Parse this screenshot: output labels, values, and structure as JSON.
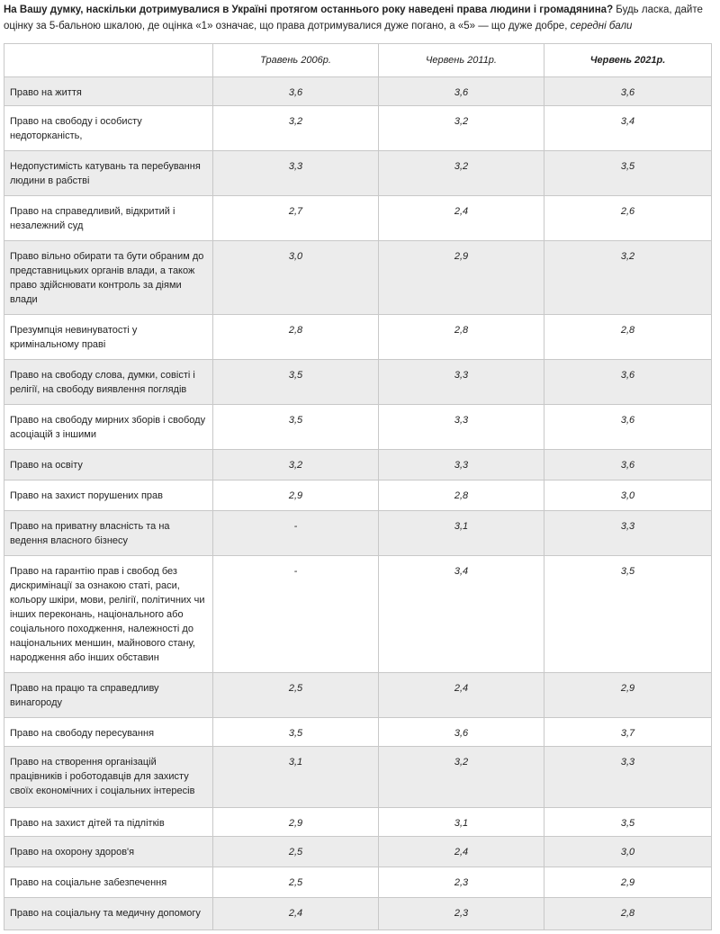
{
  "question": {
    "bold": "На Вашу думку, наскільки дотримувалися в Україні протягом останнього року наведені права людини і громадянина?",
    "text": " Будь ласка, дайте оцінку за 5-бальною шкалою, де оцінка «1» означає, що права дотримувалися дуже погано, а «5» — що дуже добре, ",
    "italic": "середні бали"
  },
  "table": {
    "headers": [
      "",
      "Травень 2006р.",
      "Червень 2011р.",
      "Червень 2021р."
    ],
    "rows": [
      {
        "label": "Право на життя",
        "values": [
          "3,6",
          "3,6",
          "3,6"
        ]
      },
      {
        "label": "Право на свободу і особисту недоторканість,",
        "values": [
          "3,2",
          "3,2",
          "3,4"
        ]
      },
      {
        "label": "Недопустимість катувань та перебування людини в рабстві",
        "values": [
          "3,3",
          "3,2",
          "3,5"
        ]
      },
      {
        "label": "Право на справедливий, відкритий і незалежний суд",
        "values": [
          "2,7",
          "2,4",
          "2,6"
        ]
      },
      {
        "label": "Право вільно обирати та бути обраним до представницьких органів влади, а також право здійснювати контроль за діями влади",
        "values": [
          "3,0",
          "2,9",
          "3,2"
        ]
      },
      {
        "label": "Презумпція невинуватості у кримінальному праві",
        "values": [
          "2,8",
          "2,8",
          "2,8"
        ]
      },
      {
        "label": "Право на свободу слова, думки, совісті і релігії, на свободу виявлення поглядів",
        "values": [
          "3,5",
          "3,3",
          "3,6"
        ]
      },
      {
        "label": "Право на свободу мирних зборів і свободу асоціацій з іншими",
        "values": [
          "3,5",
          "3,3",
          "3,6"
        ]
      },
      {
        "label": "Право на освіту",
        "values": [
          "3,2",
          "3,3",
          "3,6"
        ]
      },
      {
        "label": "Право на захист порушених прав",
        "values": [
          "2,9",
          "2,8",
          "3,0"
        ]
      },
      {
        "label": "Право на приватну власність та на ведення власного бізнесу",
        "values": [
          "-",
          "3,1",
          "3,3"
        ]
      },
      {
        "label": "Право на гарантію прав і свобод без дискримінації за ознакою статі, раси, кольору шкіри, мови, релігії, політичних чи інших переконань, національного або соціального походження, належності до національних меншин, майнового стану, народження або інших обставин",
        "values": [
          "-",
          "3,4",
          "3,5"
        ]
      },
      {
        "label": "Право на працю та справедливу винагороду",
        "values": [
          "2,5",
          "2,4",
          "2,9"
        ]
      },
      {
        "label": "Право на свободу пересування",
        "values": [
          "3,5",
          "3,6",
          "3,7"
        ]
      },
      {
        "label": "Право на створення організацій працівників і роботодавців для захисту своїх економічних і соціальних інтересів",
        "values": [
          "3,1",
          "3,2",
          "3,3"
        ]
      },
      {
        "label": "Право на захист дітей та підлітків",
        "values": [
          "2,9",
          "3,1",
          "3,5"
        ]
      },
      {
        "label": "Право на охорону здоров'я",
        "values": [
          "2,5",
          "2,4",
          "3,0"
        ]
      },
      {
        "label": "Право на соціальне забезпечення",
        "values": [
          "2,5",
          "2,3",
          "2,9"
        ]
      },
      {
        "label": "Право на соціальну та медичну допомогу",
        "values": [
          "2,4",
          "2,3",
          "2,8"
        ]
      }
    ]
  },
  "colors": {
    "stripe": "#ececec",
    "border": "#c8c8c8"
  }
}
